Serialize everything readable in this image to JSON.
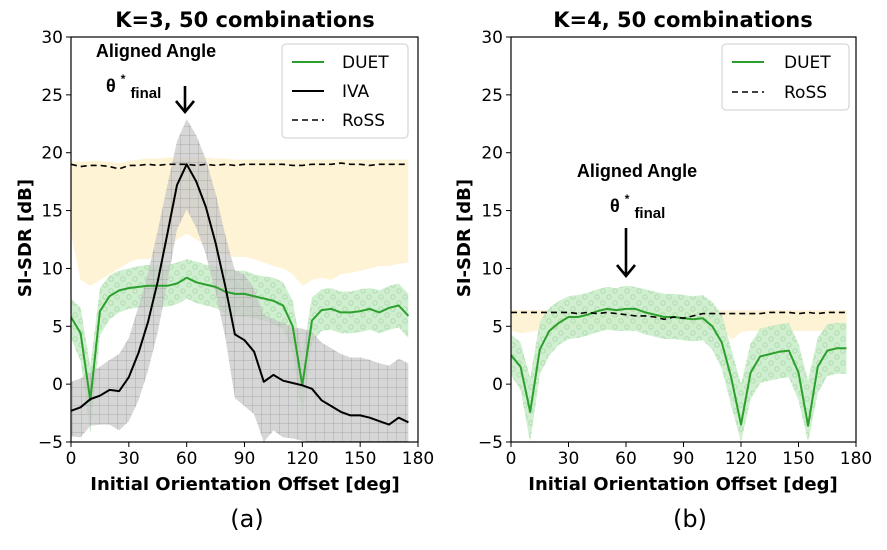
{
  "chart_data": [
    {
      "type": "line",
      "panel_label": "(a)",
      "title": "K=3, 50 combinations",
      "xlabel": "Initial Orientation Offset [deg]",
      "ylabel": "SI-SDR [dB]",
      "xlim": [
        0,
        180
      ],
      "ylim": [
        -5,
        30
      ],
      "xticks": [
        "0",
        "30",
        "60",
        "90",
        "120",
        "150",
        "180"
      ],
      "yticks": [
        "−5",
        "0",
        "5",
        "10",
        "15",
        "20",
        "25",
        "30"
      ],
      "legend": {
        "placement": "top-right",
        "entries": [
          "DUET",
          "IVA",
          "RoSS"
        ]
      },
      "annotation": {
        "text": "Aligned Angle",
        "symbol": "θ",
        "superscript": "*",
        "subscript": "final",
        "x": 60
      },
      "colors": {
        "DUET": "#2ca02c",
        "IVA": "#000000",
        "RoSS": "#000000",
        "duet_band": "#c8ecc8",
        "iva_band": "#c8c8c8",
        "ross_band": "#fff1cf"
      },
      "x": [
        0,
        5,
        10,
        15,
        20,
        25,
        30,
        35,
        40,
        45,
        50,
        55,
        60,
        65,
        70,
        75,
        80,
        85,
        90,
        95,
        100,
        105,
        110,
        115,
        120,
        125,
        130,
        135,
        140,
        145,
        150,
        155,
        160,
        165,
        170,
        175
      ],
      "series": [
        {
          "name": "DUET",
          "style": "solid",
          "values": [
            5.8,
            4.4,
            -1.4,
            6.3,
            7.6,
            8.1,
            8.3,
            8.4,
            8.5,
            8.5,
            8.5,
            8.7,
            9.2,
            8.8,
            8.6,
            8.4,
            8.0,
            7.8,
            7.8,
            7.6,
            7.4,
            7.2,
            6.8,
            5.0,
            -0.1,
            5.5,
            6.4,
            6.5,
            6.2,
            6.2,
            6.3,
            6.5,
            6.2,
            6.6,
            6.8,
            5.9
          ],
          "band": {
            "upper": [
              7.4,
              6.6,
              1.5,
              8.3,
              9.4,
              9.8,
              10.0,
              10.2,
              10.3,
              10.3,
              10.3,
              10.5,
              10.8,
              10.6,
              10.3,
              10.2,
              10.0,
              9.8,
              9.8,
              9.5,
              9.3,
              9.2,
              8.8,
              7.2,
              2.5,
              7.5,
              8.2,
              8.3,
              8.0,
              8.0,
              8.2,
              8.3,
              8.1,
              8.5,
              8.7,
              7.8
            ],
            "lower": [
              4.0,
              2.0,
              -4.3,
              4.2,
              5.6,
              6.2,
              6.5,
              6.6,
              6.7,
              6.7,
              6.7,
              6.9,
              7.4,
              7.0,
              6.8,
              6.6,
              6.1,
              5.8,
              5.8,
              5.7,
              5.5,
              5.2,
              4.8,
              2.8,
              -2.8,
              3.6,
              4.6,
              4.7,
              4.4,
              4.4,
              4.5,
              4.7,
              4.4,
              4.7,
              4.9,
              4.0
            ]
          }
        },
        {
          "name": "IVA",
          "style": "solid",
          "values": [
            -2.3,
            -2.0,
            -1.3,
            -1.0,
            -0.5,
            -0.6,
            0.6,
            2.7,
            5.4,
            8.9,
            13.0,
            17.2,
            19.0,
            17.5,
            15.3,
            12.2,
            8.5,
            4.3,
            3.8,
            2.8,
            0.2,
            0.8,
            0.3,
            0.1,
            -0.1,
            -0.4,
            -1.4,
            -1.9,
            -2.4,
            -2.7,
            -2.7,
            -2.9,
            -3.2,
            -3.5,
            -2.9,
            -3.3
          ],
          "band": {
            "upper": [
              0.2,
              0.5,
              1.0,
              1.5,
              2.1,
              2.6,
              4.0,
              6.7,
              9.6,
              13.3,
              17.2,
              21.0,
              22.9,
              21.5,
              19.4,
              16.5,
              12.9,
              9.8,
              9.5,
              8.2,
              6.0,
              5.6,
              5.3,
              4.9,
              4.8,
              4.5,
              3.6,
              3.1,
              2.6,
              2.3,
              2.3,
              2.1,
              1.8,
              1.6,
              2.2,
              1.8
            ],
            "lower": [
              -4.5,
              -4.6,
              -3.6,
              -3.5,
              -3.5,
              -4.0,
              -3.2,
              -1.4,
              1.2,
              4.5,
              8.8,
              13.4,
              15.1,
              13.5,
              11.2,
              7.9,
              4.1,
              -1.2,
              -1.9,
              -2.6,
              -5.0,
              -4.0,
              -4.6,
              -4.7,
              -4.9,
              -5.0,
              -5.0,
              -5.0,
              -5.0,
              -5.0,
              -5.0,
              -5.0,
              -5.0,
              -5.0,
              -5.0,
              -5.0
            ]
          }
        },
        {
          "name": "RoSS",
          "style": "dashed",
          "values": [
            19.0,
            18.8,
            18.9,
            18.9,
            18.8,
            18.6,
            18.9,
            18.9,
            19.0,
            18.9,
            19.0,
            19.0,
            19.0,
            18.9,
            19.0,
            18.9,
            19.0,
            18.9,
            19.0,
            19.0,
            19.0,
            19.0,
            19.0,
            18.9,
            18.9,
            19.0,
            19.0,
            19.0,
            19.1,
            19.0,
            19.0,
            18.9,
            19.0,
            19.0,
            19.0,
            19.0
          ],
          "band": {
            "upper": [
              19.3,
              19.2,
              19.3,
              19.3,
              19.2,
              19.1,
              19.3,
              19.4,
              19.5,
              19.5,
              19.6,
              19.6,
              19.6,
              19.6,
              19.6,
              19.5,
              19.5,
              19.4,
              19.4,
              19.4,
              19.4,
              19.4,
              19.4,
              19.4,
              19.4,
              19.4,
              19.4,
              19.4,
              19.4,
              19.4,
              19.4,
              19.4,
              19.4,
              19.4,
              19.4,
              19.4
            ],
            "lower": [
              13.0,
              9.0,
              8.5,
              9.0,
              9.5,
              10.0,
              10.5,
              10.8,
              10.8,
              11.0,
              11.5,
              12.5,
              13.0,
              12.5,
              12.0,
              11.5,
              11.2,
              11.0,
              11.0,
              10.8,
              10.5,
              10.2,
              10.0,
              9.5,
              8.5,
              9.0,
              9.2,
              9.0,
              9.5,
              9.6,
              9.8,
              10.0,
              10.2,
              10.2,
              10.4,
              10.5
            ]
          }
        }
      ]
    },
    {
      "type": "line",
      "panel_label": "(b)",
      "title": "K=4, 50 combinations",
      "xlabel": "Initial Orientation Offset [deg]",
      "ylabel": "SI-SDR [dB]",
      "xlim": [
        0,
        180
      ],
      "ylim": [
        -5,
        30
      ],
      "xticks": [
        "0",
        "30",
        "60",
        "90",
        "120",
        "150",
        "180"
      ],
      "yticks": [
        "−5",
        "0",
        "5",
        "10",
        "15",
        "20",
        "25",
        "30"
      ],
      "legend": {
        "placement": "top-right",
        "entries": [
          "DUET",
          "RoSS"
        ]
      },
      "annotation": {
        "text": "Aligned Angle",
        "symbol": "θ",
        "superscript": "*",
        "subscript": "final",
        "x": 60
      },
      "colors": {
        "DUET": "#2ca02c",
        "RoSS": "#000000",
        "duet_band": "#c8ecc8",
        "ross_band": "#fff1cf"
      },
      "x": [
        0,
        5,
        10,
        15,
        20,
        25,
        30,
        35,
        40,
        45,
        50,
        55,
        60,
        65,
        70,
        75,
        80,
        85,
        90,
        95,
        100,
        105,
        110,
        115,
        120,
        125,
        130,
        135,
        140,
        145,
        150,
        155,
        160,
        165,
        170,
        175
      ],
      "series": [
        {
          "name": "DUET",
          "style": "solid",
          "values": [
            2.5,
            1.5,
            -2.4,
            3.0,
            4.6,
            5.3,
            5.8,
            5.8,
            6.0,
            6.3,
            6.5,
            6.4,
            6.5,
            6.5,
            6.2,
            6.0,
            5.8,
            5.8,
            5.7,
            5.6,
            5.7,
            5.0,
            3.6,
            0.5,
            -3.5,
            1.0,
            2.4,
            2.6,
            2.8,
            2.9,
            1.0,
            -3.6,
            1.5,
            2.9,
            3.1,
            3.1
          ],
          "band": {
            "upper": [
              4.3,
              3.6,
              0.5,
              5.4,
              6.6,
              7.2,
              7.6,
              7.7,
              7.9,
              8.2,
              8.4,
              8.3,
              8.5,
              8.4,
              8.2,
              8.0,
              7.8,
              7.8,
              7.7,
              7.6,
              7.7,
              7.1,
              6.0,
              3.0,
              0.0,
              3.5,
              4.8,
              5.0,
              5.2,
              5.3,
              3.5,
              0.3,
              4.0,
              5.2,
              5.3,
              5.3
            ],
            "lower": [
              0.8,
              -0.5,
              -5.0,
              0.8,
              2.5,
              3.4,
              3.9,
              4.0,
              4.2,
              4.5,
              4.7,
              4.6,
              4.6,
              4.6,
              4.3,
              4.1,
              3.9,
              3.9,
              3.8,
              3.7,
              3.8,
              3.0,
              1.3,
              -1.9,
              -5.0,
              -1.3,
              0.1,
              0.3,
              0.5,
              0.6,
              -1.4,
              -5.0,
              -0.8,
              0.7,
              0.9,
              0.9
            ]
          }
        },
        {
          "name": "RoSS",
          "style": "dashed",
          "values": [
            6.2,
            6.2,
            6.2,
            6.2,
            6.2,
            6.2,
            6.2,
            6.1,
            6.2,
            6.1,
            6.2,
            6.1,
            6.0,
            5.9,
            5.9,
            5.8,
            5.6,
            5.8,
            5.7,
            5.9,
            6.1,
            6.1,
            6.1,
            6.1,
            6.1,
            6.1,
            6.1,
            6.2,
            6.2,
            6.2,
            6.1,
            6.2,
            6.1,
            6.2,
            6.2,
            6.2
          ],
          "band": {
            "upper": [
              6.4,
              6.4,
              6.4,
              6.4,
              6.4,
              6.4,
              6.4,
              6.4,
              6.4,
              6.4,
              6.4,
              6.4,
              6.4,
              6.4,
              6.4,
              6.4,
              6.4,
              6.4,
              6.4,
              6.4,
              6.4,
              6.4,
              6.4,
              6.4,
              6.4,
              6.4,
              6.4,
              6.4,
              6.4,
              6.4,
              6.4,
              6.4,
              6.4,
              6.4,
              6.4,
              6.4
            ],
            "lower": [
              4.6,
              4.4,
              4.5,
              4.7,
              4.8,
              4.8,
              4.8,
              4.8,
              4.8,
              4.8,
              4.8,
              4.8,
              4.8,
              4.8,
              4.8,
              4.8,
              4.8,
              4.8,
              4.8,
              4.8,
              4.8,
              4.9,
              5.0,
              3.8,
              4.5,
              4.6,
              4.6,
              4.6,
              4.6,
              4.6,
              4.6,
              4.6,
              4.6,
              4.6,
              4.6,
              4.6
            ]
          }
        }
      ]
    }
  ]
}
